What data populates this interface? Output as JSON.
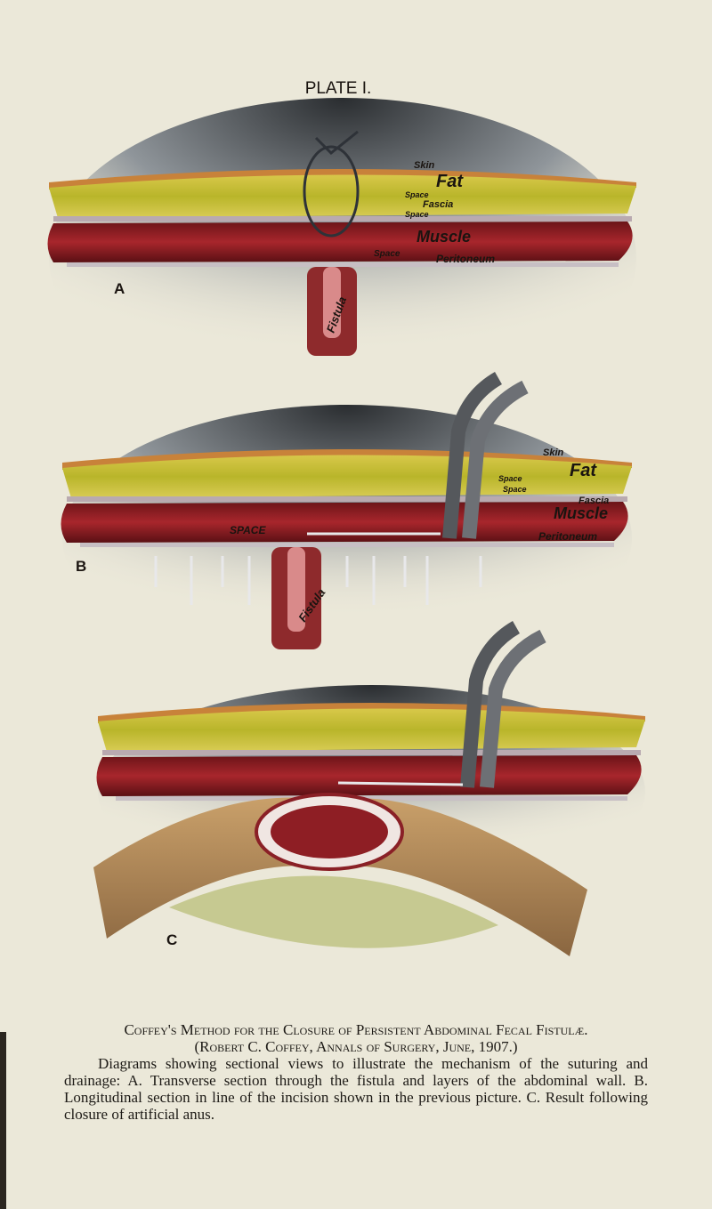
{
  "header": {
    "title": "PLATE I."
  },
  "figures": [
    {
      "label": "A",
      "annotations": [
        "Skin",
        "Fat",
        "Space",
        "Fascia",
        "Space",
        "Muscle",
        "Space",
        "Peritoneum",
        "Fistula"
      ]
    },
    {
      "label": "B",
      "annotations": [
        "Skin",
        "Fat",
        "Space",
        "Fascia",
        "Space",
        "Muscle",
        "SPACE",
        "Peritoneum",
        "Fistula"
      ]
    },
    {
      "label": "C",
      "annotations": []
    }
  ],
  "caption": {
    "title": "Coffey's Method for the Closure of Persistent Abdominal Fecal Fistulæ.",
    "citation": "(Robert C. Coffey, Annals of Surgery, June, 1907.)",
    "text": "Diagrams showing sectional views to illustrate the mechanism of the suturing and drainage: A. Transverse section through the fistula and layers of the abdominal wall. B. Longitudinal section in line of the incision shown in the previous picture. C. Result following closure of artificial anus."
  }
}
